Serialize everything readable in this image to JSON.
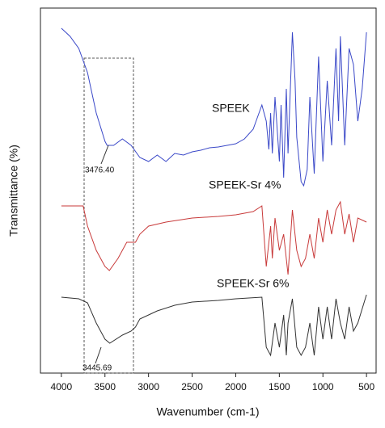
{
  "chart_data": {
    "type": "line",
    "xlabel": "Wavenumber (cm-1)",
    "ylabel": "Transmittance (%)",
    "xlim": [
      4240,
      390
    ],
    "xticks": [
      4000,
      3500,
      3000,
      2500,
      2000,
      1500,
      1000,
      500
    ],
    "ylim": [
      0,
      452
    ],
    "annotations": [
      "3476.40",
      "3445.69"
    ],
    "series": [
      {
        "name": "SPEEK",
        "color": "#3a48c8",
        "x": [
          4000,
          3900,
          3800,
          3700,
          3600,
          3500,
          3476,
          3400,
          3300,
          3200,
          3100,
          3000,
          2900,
          2800,
          2700,
          2600,
          2500,
          2400,
          2300,
          2200,
          2100,
          2000,
          1900,
          1800,
          1700,
          1650,
          1620,
          1600,
          1580,
          1550,
          1500,
          1480,
          1450,
          1420,
          1400,
          1350,
          1320,
          1300,
          1250,
          1220,
          1180,
          1150,
          1100,
          1050,
          1000,
          950,
          900,
          850,
          820,
          800,
          750,
          700,
          650,
          600,
          550,
          500
        ],
        "values": [
          427,
          417,
          402,
          372,
          322,
          287,
          282,
          282,
          290,
          282,
          267,
          262,
          270,
          262,
          272,
          270,
          274,
          276,
          279,
          280,
          282,
          284,
          290,
          302,
          332,
          312,
          277,
          322,
          272,
          342,
          262,
          332,
          242,
          352,
          272,
          422,
          362,
          292,
          237,
          232,
          252,
          342,
          247,
          392,
          262,
          362,
          282,
          402,
          312,
          417,
          282,
          402,
          382,
          312,
          352,
          422
        ]
      },
      {
        "name": "SPEEK-Sr 4%",
        "color": "#c83a3a",
        "x": [
          4000,
          3750,
          3700,
          3600,
          3500,
          3450,
          3350,
          3250,
          3150,
          3100,
          3000,
          2800,
          2500,
          2200,
          2000,
          1800,
          1700,
          1650,
          1600,
          1580,
          1550,
          1500,
          1450,
          1400,
          1350,
          1300,
          1250,
          1200,
          1150,
          1100,
          1050,
          1000,
          950,
          900,
          850,
          800,
          750,
          700,
          650,
          600,
          500
        ],
        "values": [
          207,
          207,
          182,
          152,
          132,
          127,
          142,
          162,
          162,
          172,
          182,
          187,
          192,
          194,
          196,
          200,
          207,
          132,
          182,
          142,
          192,
          152,
          172,
          122,
          202,
          152,
          132,
          142,
          172,
          142,
          192,
          162,
          202,
          172,
          202,
          212,
          172,
          197,
          162,
          192,
          187
        ]
      },
      {
        "name": "SPEEK-Sr 6%",
        "color": "#333333",
        "x": [
          4000,
          3800,
          3700,
          3600,
          3500,
          3445,
          3300,
          3200,
          3150,
          3100,
          3000,
          2900,
          2700,
          2500,
          2200,
          2000,
          1700,
          1650,
          1600,
          1550,
          1500,
          1450,
          1420,
          1400,
          1350,
          1300,
          1250,
          1200,
          1150,
          1100,
          1050,
          1000,
          950,
          900,
          850,
          800,
          750,
          700,
          650,
          600,
          500
        ],
        "values": [
          94,
          92,
          87,
          62,
          42,
          37,
          47,
          52,
          57,
          67,
          72,
          77,
          84,
          88,
          90,
          92,
          94,
          32,
          22,
          62,
          32,
          72,
          22,
          62,
          92,
          32,
          22,
          32,
          62,
          22,
          82,
          42,
          82,
          42,
          92,
          62,
          42,
          82,
          52,
          62,
          97
        ]
      }
    ]
  }
}
